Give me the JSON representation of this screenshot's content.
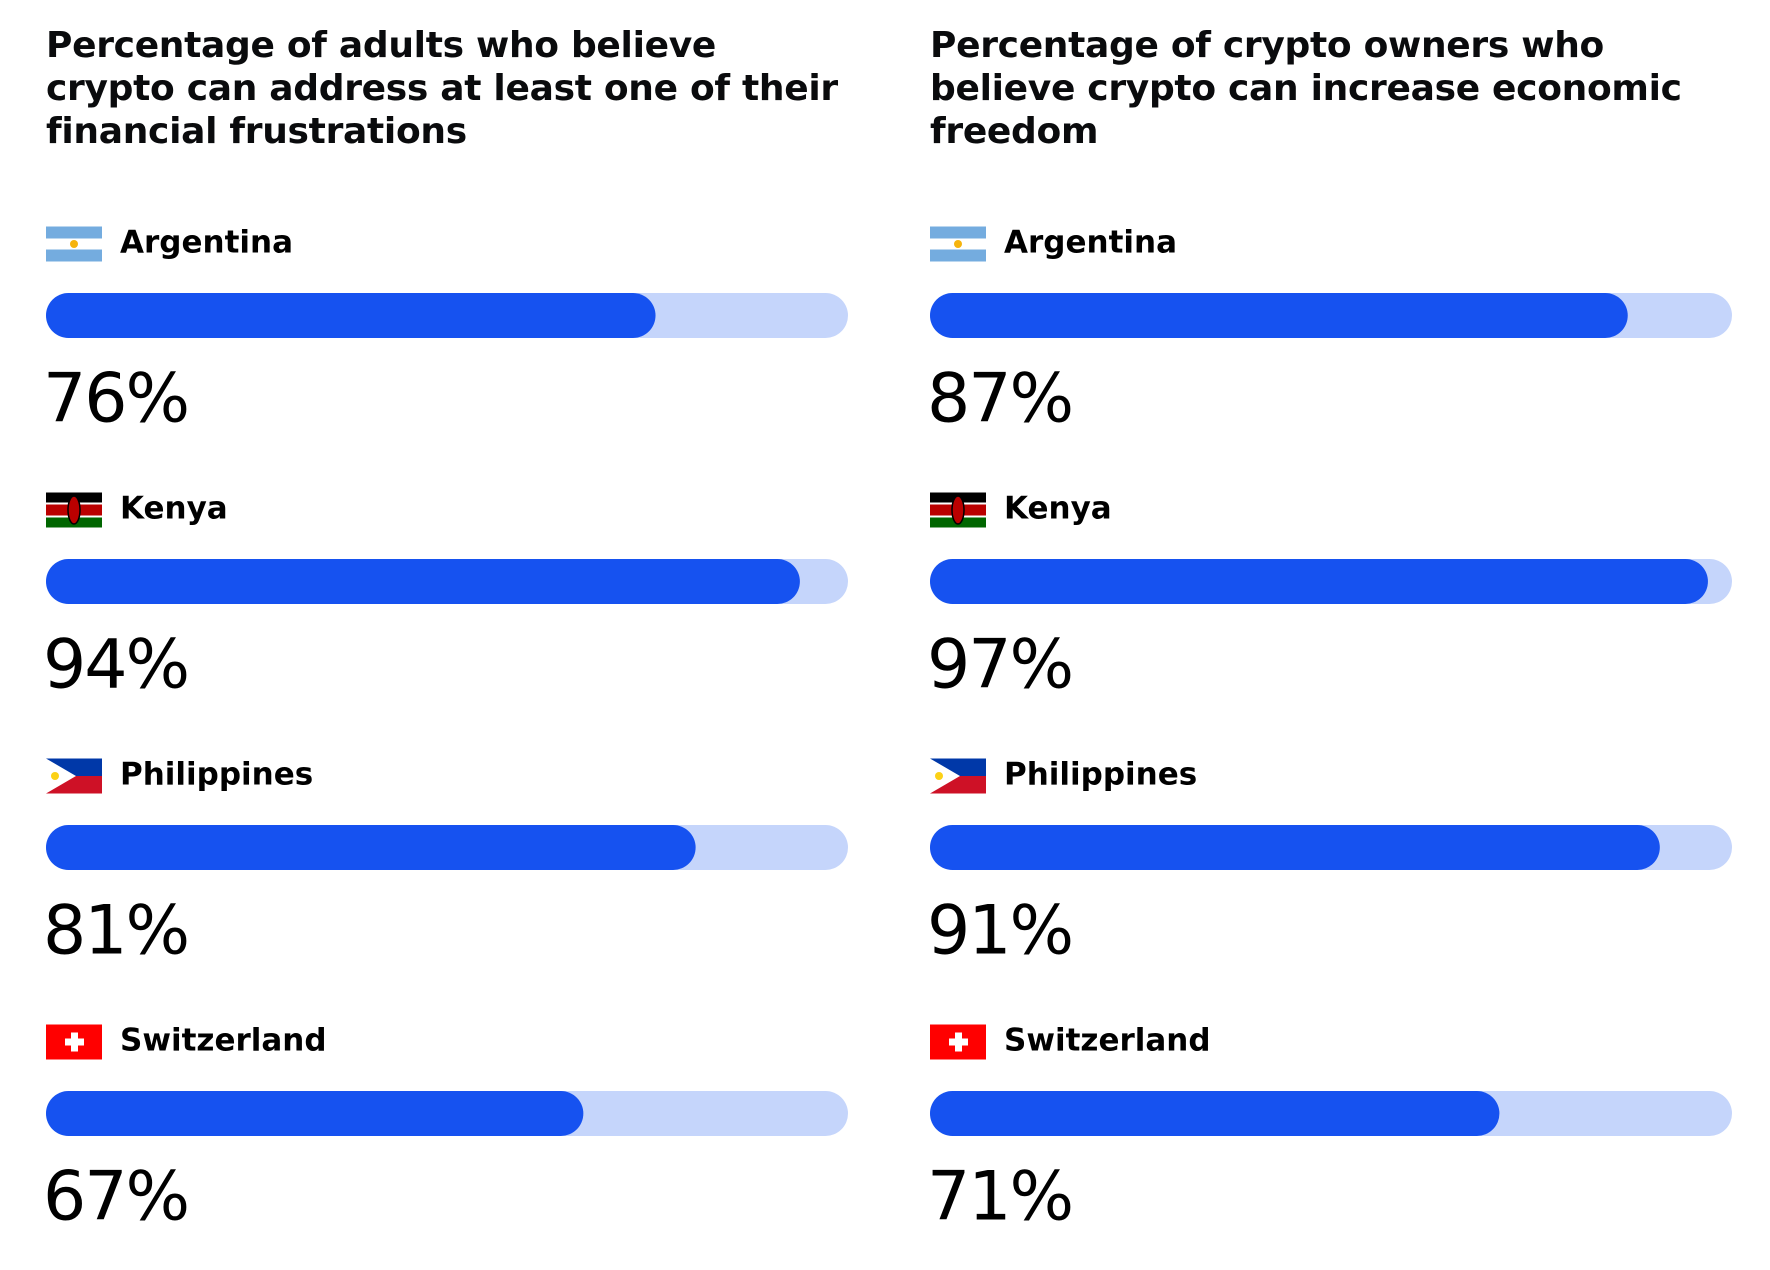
{
  "chart_data": [
    {
      "type": "bar",
      "title": "Percentage of adults who believe crypto can address at least one of their financial frustrations",
      "categories": [
        "Argentina",
        "Kenya",
        "Philippines",
        "Switzerland"
      ],
      "values": [
        76,
        94,
        81,
        67
      ],
      "value_labels": [
        "76%",
        "94%",
        "81%",
        "67%"
      ],
      "xlim": [
        0,
        100
      ],
      "color": "#1652f0",
      "track_color": "#c5d5fb"
    },
    {
      "type": "bar",
      "title": "Percentage of crypto owners who believe crypto can increase economic freedom",
      "categories": [
        "Argentina",
        "Kenya",
        "Philippines",
        "Switzerland"
      ],
      "values": [
        87,
        97,
        91,
        71
      ],
      "value_labels": [
        "87%",
        "97%",
        "91%",
        "71%"
      ],
      "xlim": [
        0,
        100
      ],
      "color": "#1652f0",
      "track_color": "#c5d5fb"
    }
  ]
}
